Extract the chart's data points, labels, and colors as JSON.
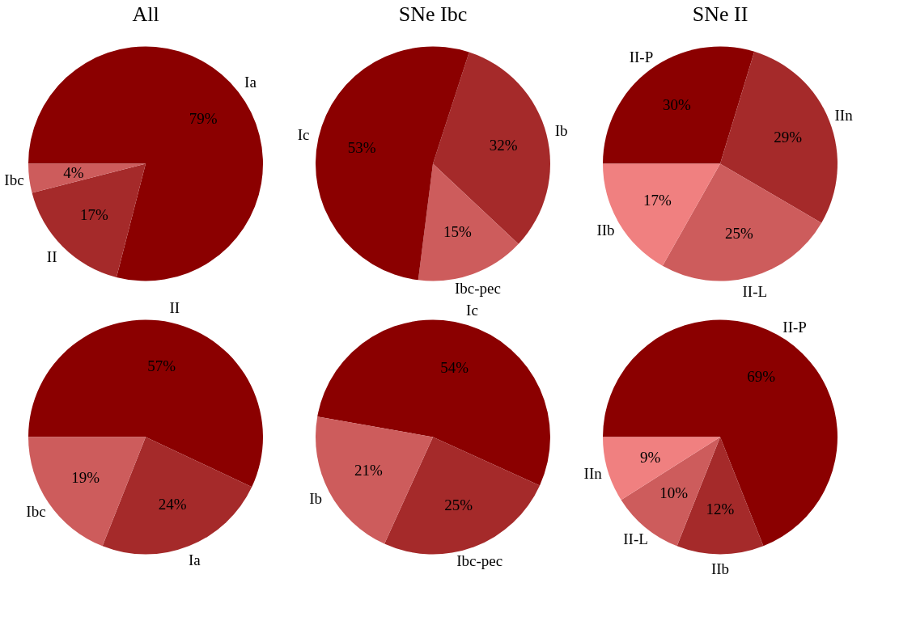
{
  "chart_data": [
    {
      "type": "pie",
      "title": "All",
      "categories": [
        "Ia",
        "II",
        "Ibc"
      ],
      "values": [
        79,
        17,
        4
      ],
      "colors": [
        "#8b0000",
        "#a52a2a",
        "#cd5c5c"
      ],
      "value_labels": [
        "79%",
        "17%",
        "4%"
      ]
    },
    {
      "type": "pie",
      "title": "SNe Ibc",
      "categories": [
        "Ib",
        "Ibc-pec",
        "Ic"
      ],
      "values": [
        32,
        15,
        53
      ],
      "colors": [
        "#a52a2a",
        "#cd5c5c",
        "#8b0000"
      ],
      "value_labels": [
        "32%",
        "15%",
        "53%"
      ]
    },
    {
      "type": "pie",
      "title": "SNe II",
      "categories": [
        "II-P",
        "IIn",
        "II-L",
        "IIb"
      ],
      "values": [
        30,
        29,
        25,
        17
      ],
      "colors": [
        "#8b0000",
        "#a52a2a",
        "#cd5c5c",
        "#f08080"
      ],
      "value_labels": [
        "30%",
        "29%",
        "25%",
        "17%"
      ]
    },
    {
      "type": "pie",
      "categories": [
        "II",
        "Ia",
        "Ibc"
      ],
      "values": [
        57,
        24,
        19
      ],
      "colors": [
        "#8b0000",
        "#a52a2a",
        "#cd5c5c"
      ],
      "value_labels": [
        "57%",
        "24%",
        "19%"
      ]
    },
    {
      "type": "pie",
      "categories": [
        "Ic",
        "Ibc-pec",
        "Ib"
      ],
      "values": [
        54,
        25,
        21
      ],
      "colors": [
        "#8b0000",
        "#a52a2a",
        "#cd5c5c"
      ],
      "value_labels": [
        "54%",
        "25%",
        "21%"
      ]
    },
    {
      "type": "pie",
      "categories": [
        "II-P",
        "IIb",
        "II-L",
        "IIn"
      ],
      "values": [
        69,
        12,
        10,
        9
      ],
      "colors": [
        "#8b0000",
        "#a52a2a",
        "#cd5c5c",
        "#f08080"
      ],
      "value_labels": [
        "69%",
        "12%",
        "10%",
        "9%"
      ]
    }
  ]
}
